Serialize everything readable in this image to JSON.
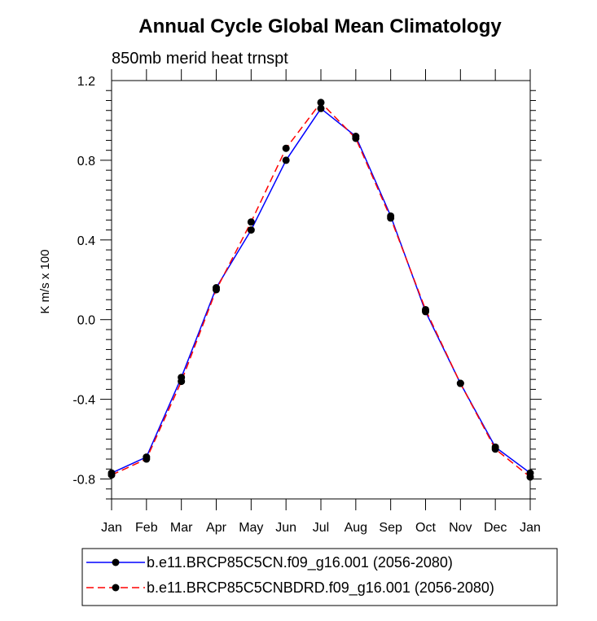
{
  "chart_data": {
    "type": "line",
    "title": "Annual Cycle Global Mean Climatology",
    "subtitle": "850mb merid heat trnspt",
    "ylabel": "K m/s x 100",
    "xlabel": "",
    "categories": [
      "Jan",
      "Feb",
      "Mar",
      "Apr",
      "May",
      "Jun",
      "Jul",
      "Aug",
      "Sep",
      "Oct",
      "Nov",
      "Dec",
      "Jan"
    ],
    "ylim": [
      -0.9,
      1.2
    ],
    "yticks": [
      -0.8,
      -0.4,
      0.0,
      0.4,
      0.8,
      1.2
    ],
    "ytick_labels": [
      "-0.8",
      "-0.4",
      "0.0",
      "0.4",
      "0.8",
      "1.2"
    ],
    "grid": false,
    "legend_position": "bottom",
    "series": [
      {
        "name": "b.e11.BRCP85C5CN.f09_g16.001 (2056-2080)",
        "color": "#0000ff",
        "dash": "solid",
        "values": [
          -0.77,
          -0.69,
          -0.29,
          0.16,
          0.45,
          0.8,
          1.06,
          0.92,
          0.52,
          0.04,
          -0.32,
          -0.64,
          -0.77
        ]
      },
      {
        "name": "b.e11.BRCP85C5CNBDRD.f09_g16.001 (2056-2080)",
        "color": "#ff0000",
        "dash": "dashed",
        "values": [
          -0.78,
          -0.7,
          -0.31,
          0.15,
          0.49,
          0.86,
          1.09,
          0.91,
          0.51,
          0.05,
          -0.32,
          -0.65,
          -0.79
        ]
      }
    ]
  }
}
